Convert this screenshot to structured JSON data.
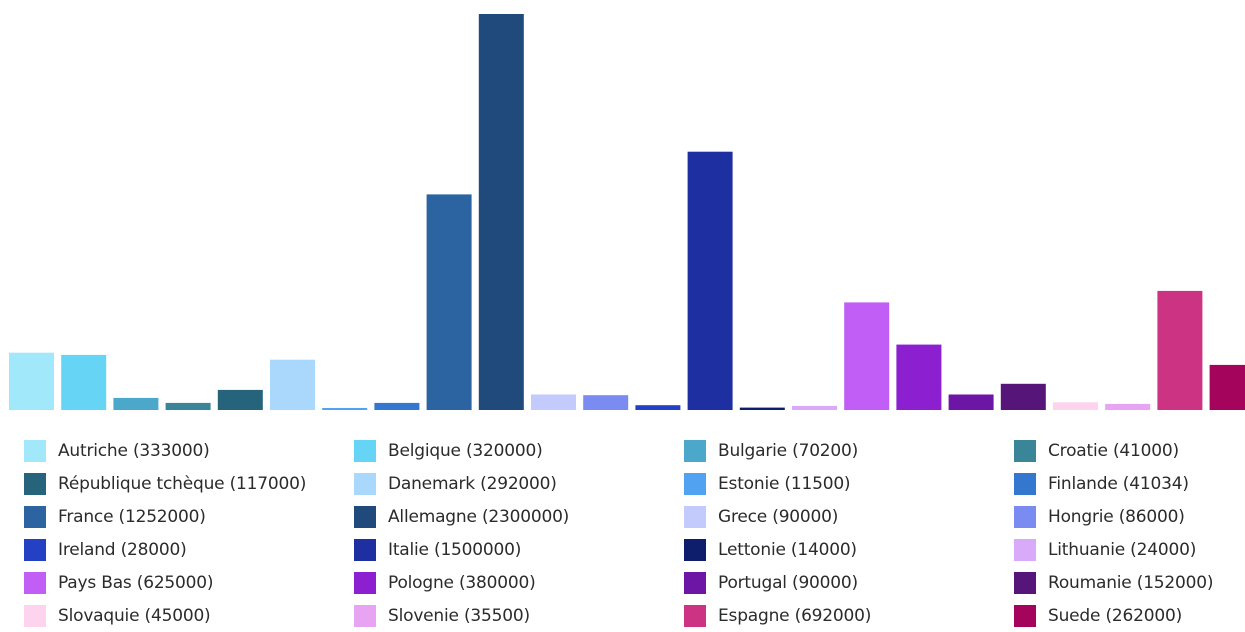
{
  "chart_data": {
    "type": "bar",
    "title": "",
    "xlabel": "",
    "ylabel": "",
    "ylim": [
      0,
      2300000
    ],
    "grid": false,
    "legend_position": "bottom",
    "categories": [
      "Autriche",
      "Belgique",
      "Bulgarie",
      "Croatie",
      "République tchèque",
      "Danemark",
      "Estonie",
      "Finlande",
      "France",
      "Allemagne",
      "Grece",
      "Hongrie",
      "Ireland",
      "Italie",
      "Lettonie",
      "Lithuanie",
      "Pays Bas",
      "Pologne",
      "Portugal",
      "Roumanie",
      "Slovaquie",
      "Slovenie",
      "Espagne",
      "Suede"
    ],
    "values": [
      333000,
      320000,
      70200,
      41000,
      117000,
      292000,
      11500,
      41034,
      1252000,
      2300000,
      90000,
      86000,
      28000,
      1500000,
      14000,
      24000,
      625000,
      380000,
      90000,
      152000,
      45000,
      35500,
      692000,
      262000
    ],
    "colors": [
      "#a2e8fb",
      "#66d4f5",
      "#4ba8cb",
      "#3a8598",
      "#25647a",
      "#a9d8fc",
      "#51a3f1",
      "#3477cf",
      "#2c64a2",
      "#1f4a7b",
      "#c3cafc",
      "#7a8cf1",
      "#2441c6",
      "#1e30a1",
      "#0f1d6d",
      "#d8aaf9",
      "#c05ef5",
      "#8c1fd0",
      "#6d16a5",
      "#561679",
      "#fdd3ed",
      "#e7a4f2",
      "#cd3383",
      "#a4045b"
    ],
    "legend_labels": [
      "Autriche (333000)",
      "Belgique (320000)",
      "Bulgarie (70200)",
      "Croatie (41000)",
      "République tchèque (117000)",
      "Danemark (292000)",
      "Estonie (11500)",
      "Finlande (41034)",
      "France (1252000)",
      "Allemagne (2300000)",
      "Grece  (90000)",
      "Hongrie (86000)",
      "Ireland (28000)",
      "Italie (1500000)",
      "Lettonie (14000)",
      "Lithuanie (24000)",
      "Pays Bas (625000)",
      "Pologne (380000)",
      "Portugal (90000)",
      "Roumanie (152000)",
      "Slovaquie (45000)",
      "Slovenie (35500)",
      "Espagne (692000)",
      "Suede (262000)"
    ]
  }
}
